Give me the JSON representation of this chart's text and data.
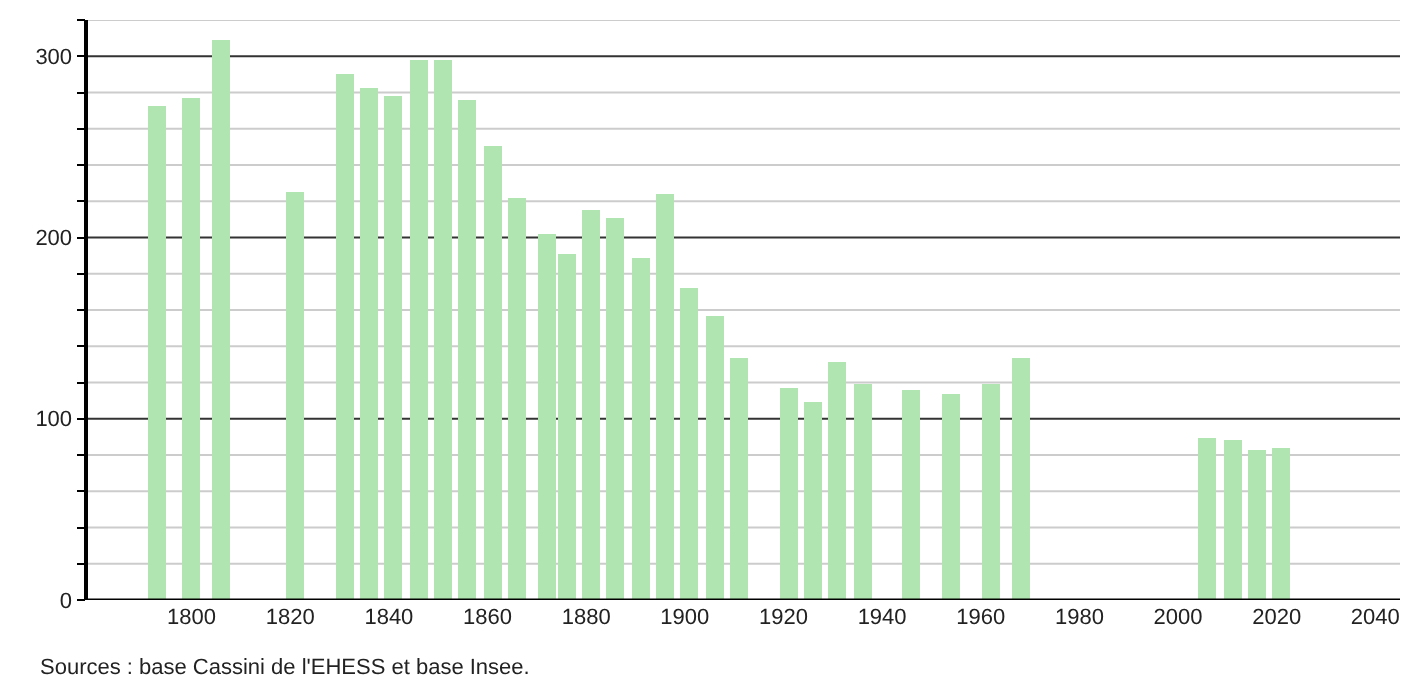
{
  "chart_data": {
    "type": "bar",
    "x": [
      1793,
      1800,
      1806,
      1821,
      1831,
      1836,
      1841,
      1846,
      1851,
      1856,
      1861,
      1866,
      1872,
      1876,
      1881,
      1886,
      1891,
      1896,
      1901,
      1906,
      1911,
      1921,
      1926,
      1931,
      1936,
      1946,
      1954,
      1962,
      1968,
      2006,
      2011,
      2016,
      2021
    ],
    "values": [
      273,
      277,
      309,
      225,
      290,
      283,
      278,
      298,
      298,
      276,
      250,
      222,
      202,
      191,
      215,
      211,
      189,
      224,
      172,
      157,
      134,
      117,
      109,
      131,
      119,
      116,
      114,
      119,
      133,
      89,
      88,
      83,
      84
    ],
    "color": "#b0e4b0",
    "xlim": [
      1779,
      2045
    ],
    "xticks": [
      1800,
      1820,
      1840,
      1860,
      1880,
      1900,
      1920,
      1940,
      1960,
      1980,
      2000,
      2020,
      2040
    ],
    "ylim": [
      0,
      320
    ],
    "yticks": [
      0,
      {
        "value": 20,
        "label": null
      },
      {
        "value": 40,
        "label": null
      },
      {
        "value": 60,
        "label": null
      },
      {
        "value": 80,
        "label": null
      },
      100,
      {
        "value": 120,
        "label": null
      },
      {
        "value": 140,
        "label": null
      },
      {
        "value": 160,
        "label": null
      },
      {
        "value": 180,
        "label": null
      },
      200,
      {
        "value": 220,
        "label": null
      },
      {
        "value": 240,
        "label": null
      },
      {
        "value": 260,
        "label": null
      },
      {
        "value": 280,
        "label": null
      },
      300,
      {
        "value": 320,
        "label": null
      }
    ],
    "grid": "y",
    "annotations": [
      "Sources : base Cassini de l'EHESS et base Insee."
    ]
  }
}
